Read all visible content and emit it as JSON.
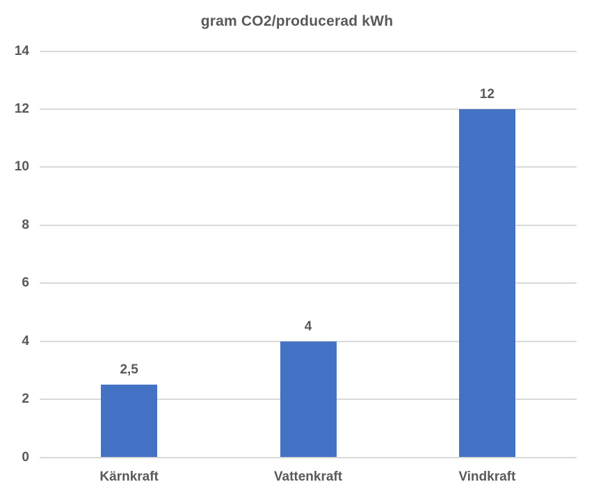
{
  "title": "gram CO2/producerad kWh",
  "colors": {
    "bar": "#4472C4",
    "text": "#595959",
    "gridline": "#D9D9D9",
    "axis_line": "#D9D9D9",
    "background": "#FFFFFF"
  },
  "chart_data": {
    "type": "bar",
    "title": "gram CO2/producerad kWh",
    "categories": [
      "Kärnkraft",
      "Vattenkraft",
      "Vindkraft"
    ],
    "values": [
      2.5,
      4,
      12
    ],
    "value_labels": [
      "2,5",
      "4",
      "12"
    ],
    "series": [
      {
        "name": "gram CO2/producerad kWh",
        "values": [
          2.5,
          4,
          12
        ]
      }
    ],
    "xlabel": "",
    "ylabel": "",
    "ylim": [
      0,
      14
    ],
    "ytick_interval": 2,
    "yticks": [
      0,
      2,
      4,
      6,
      8,
      10,
      12,
      14
    ],
    "ytick_labels": [
      "0",
      "2",
      "4",
      "6",
      "8",
      "10",
      "12",
      "14"
    ],
    "grid": "horizontal",
    "legend_position": "none"
  }
}
